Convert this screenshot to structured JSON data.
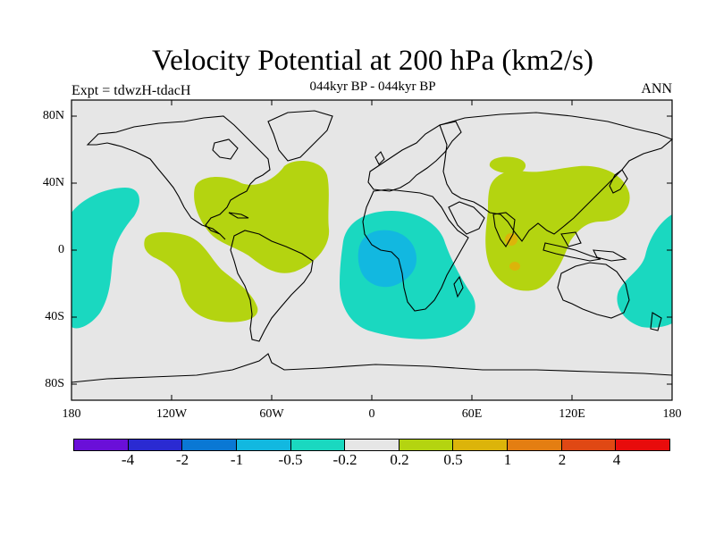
{
  "title": "Velocity Potential at 200 hPa (km2/s)",
  "subtitle": "044kyr BP - 044kyr BP",
  "left_label": "Expt = tdwzH-tdacH",
  "right_label": "ANN",
  "y_ticks": [
    "80N",
    "40N",
    "0",
    "40S",
    "80S"
  ],
  "x_ticks": [
    "180",
    "120W",
    "60W",
    "0",
    "60E",
    "120E",
    "180"
  ],
  "colorbar": {
    "colors": [
      "#6a0fd8",
      "#2a2ad2",
      "#0a78d4",
      "#12b8e0",
      "#1ad8c0",
      "#e6e6e6",
      "#b4d410",
      "#dcb40a",
      "#e47e12",
      "#e04814",
      "#e80c0c"
    ],
    "labels": [
      "-4",
      "-2",
      "-1",
      "-0.5",
      "-0.2",
      "0.2",
      "0.5",
      "1",
      "2",
      "4"
    ]
  },
  "map_colors": {
    "background": "#e6e6e6",
    "neg_weak": "#1ad8c0",
    "neg_mid": "#12b8e0",
    "pos_weak": "#b4d410",
    "pos_mid": "#dcb40a",
    "coast": "#000000"
  }
}
